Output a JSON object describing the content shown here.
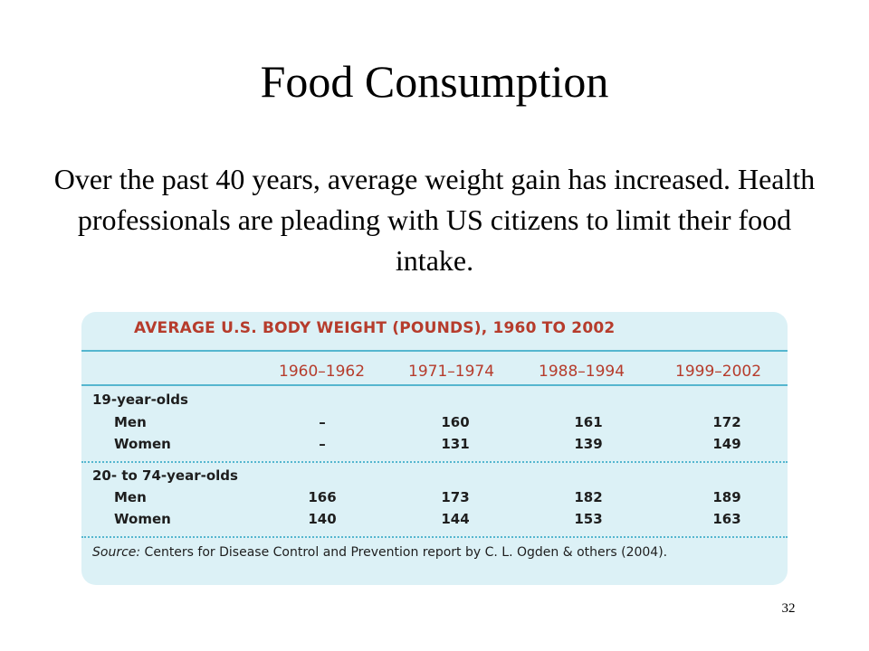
{
  "slide": {
    "title": "Food Consumption",
    "body": "Over the past 40 years, average weight gain has increased. Health professionals are pleading with US citizens to limit their food intake.",
    "page_number": "32"
  },
  "table": {
    "title": "AVERAGE U.S. BODY WEIGHT (POUNDS), 1960 TO 2002",
    "columns": [
      "1960–1962",
      "1971–1974",
      "1988–1994",
      "1999–2002"
    ],
    "groups": [
      {
        "label": "19-year-olds",
        "rows": [
          {
            "label": "Men",
            "values": [
              "–",
              "160",
              "161",
              "172"
            ]
          },
          {
            "label": "Women",
            "values": [
              "–",
              "131",
              "139",
              "149"
            ]
          }
        ]
      },
      {
        "label": "20- to 74-year-olds",
        "rows": [
          {
            "label": "Men",
            "values": [
              "166",
              "173",
              "182",
              "189"
            ]
          },
          {
            "label": "Women",
            "values": [
              "140",
              "144",
              "153",
              "163"
            ]
          }
        ]
      }
    ],
    "source_label": "Source:",
    "source_text": " Centers for Disease Control and Prevention report by C. L. Ogden & others (2004)."
  },
  "colors": {
    "panel_background": "#dcf1f6",
    "rule": "#55b6cf",
    "header_text": "#b63c2c"
  }
}
